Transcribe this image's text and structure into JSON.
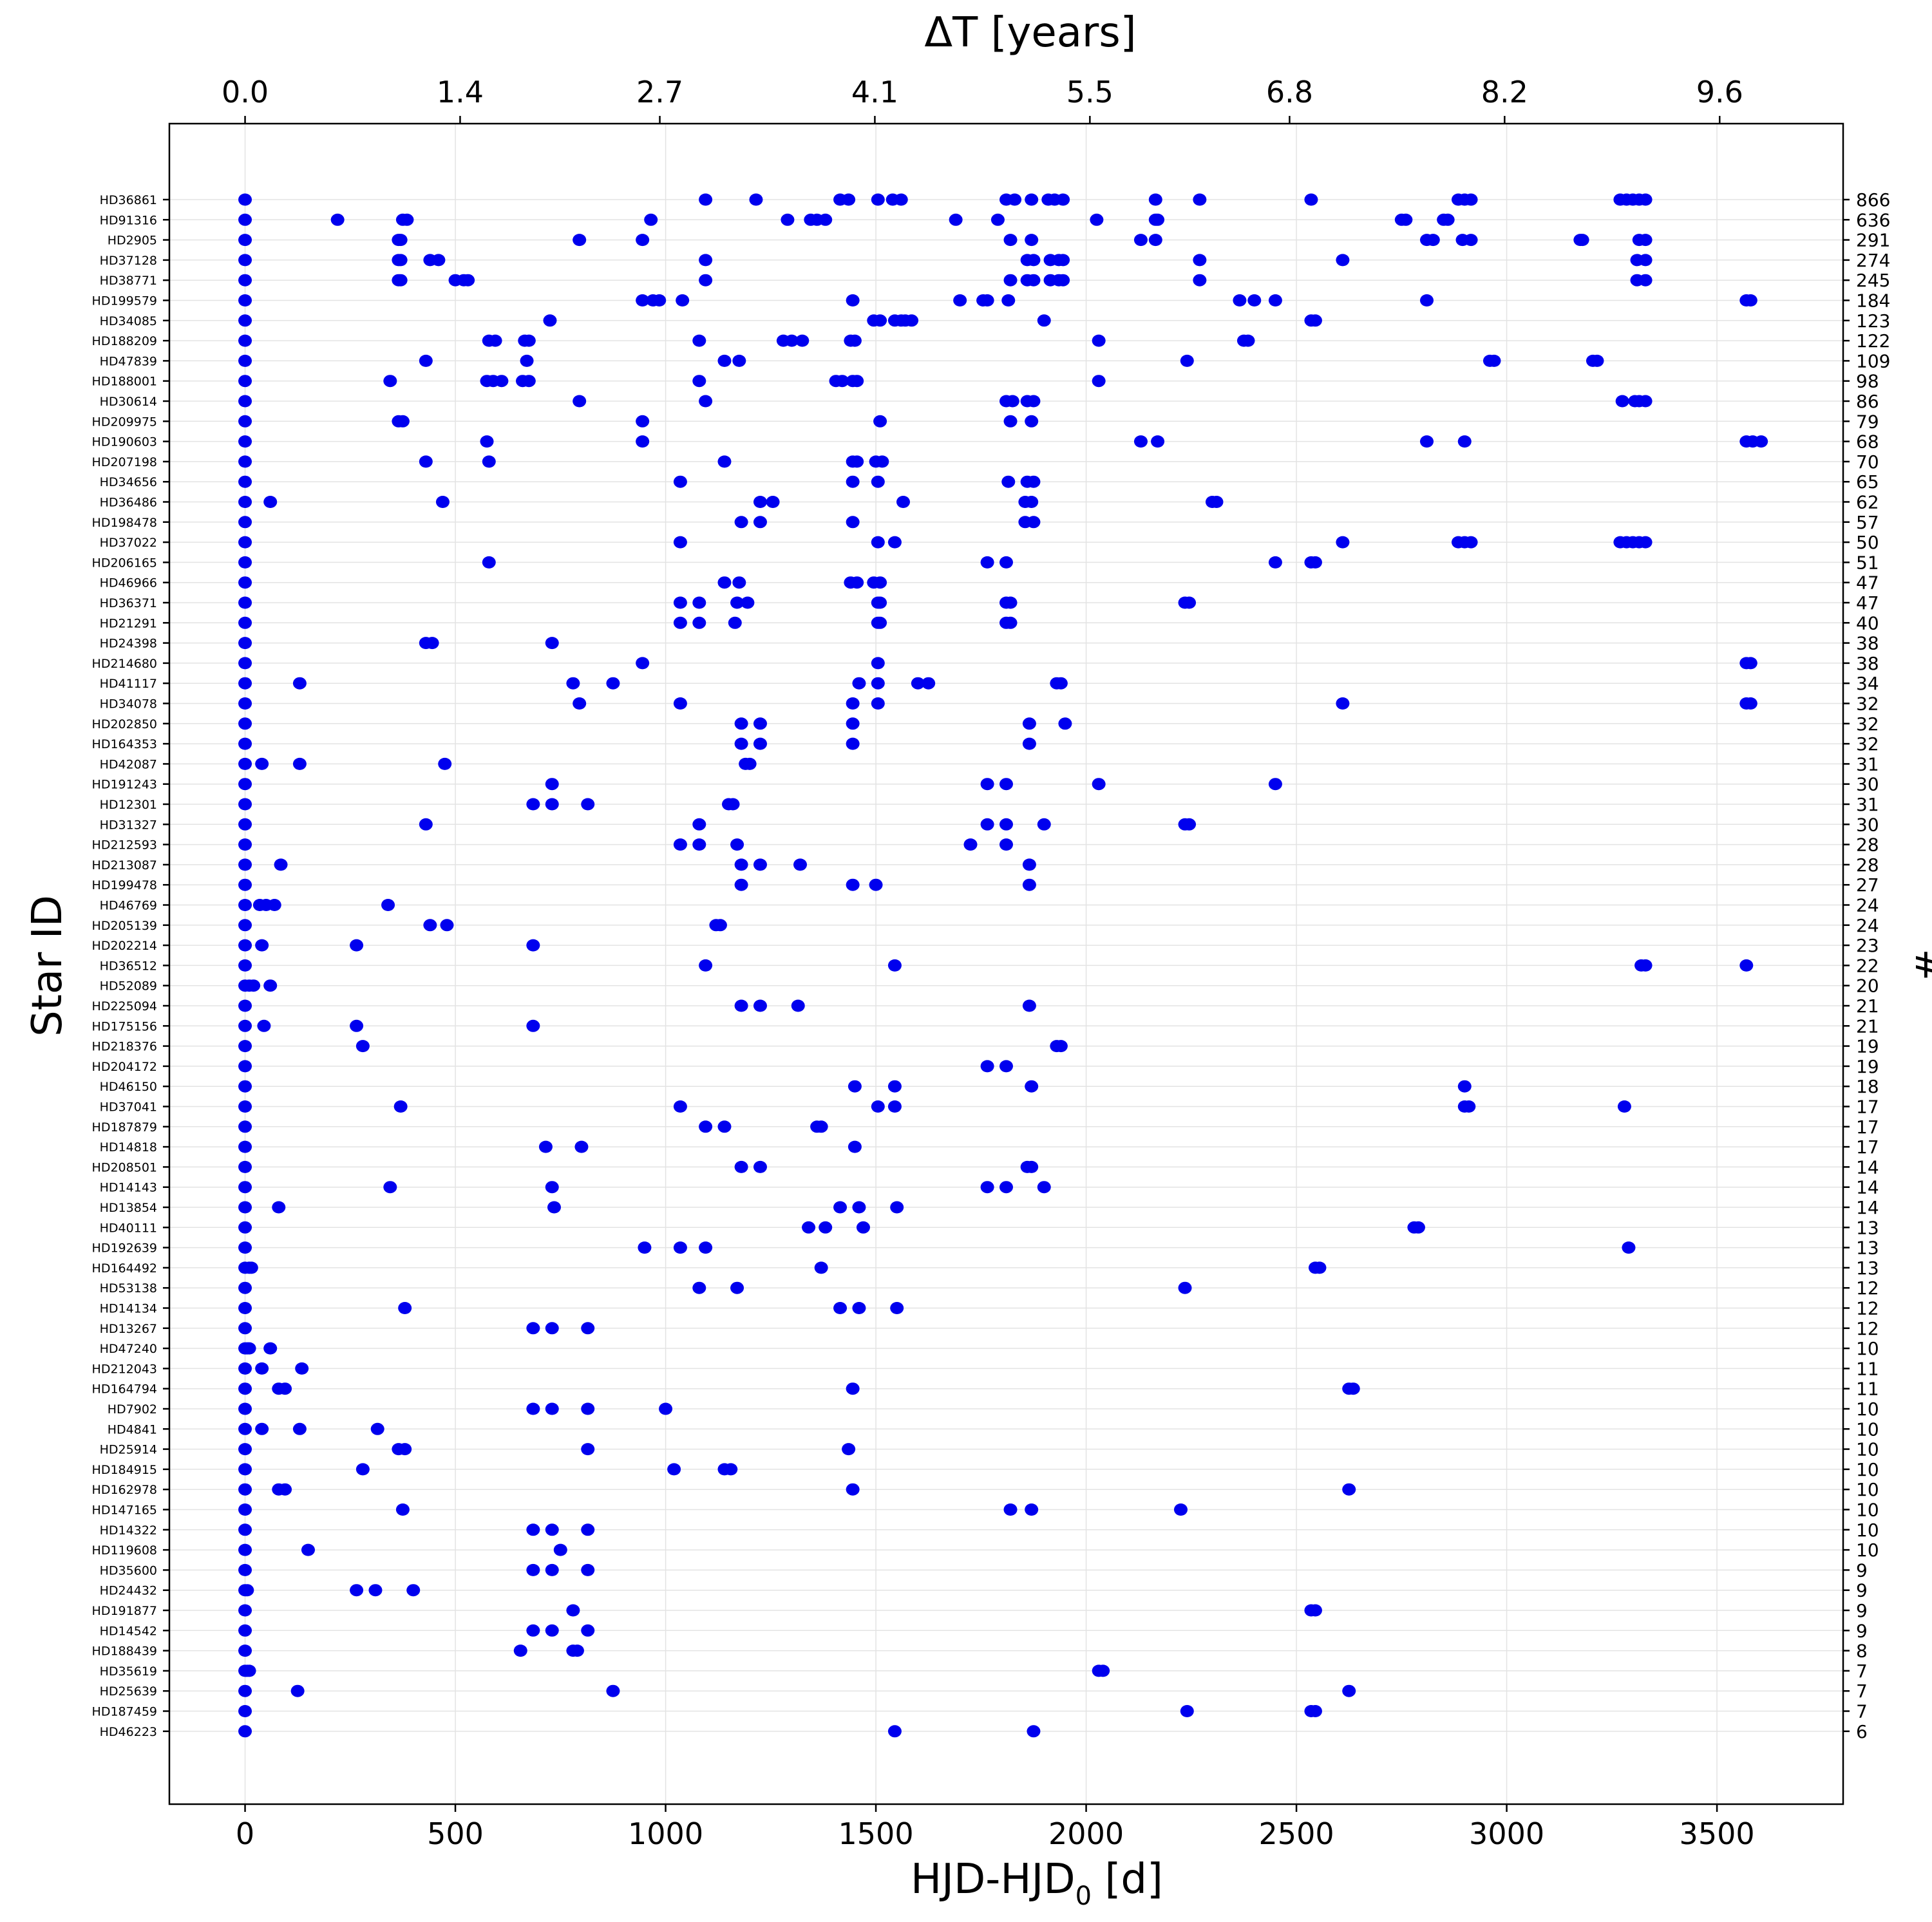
{
  "chart_data": {
    "type": "scatter",
    "xlabel": "HJD-HJD",
    "xlabel_sub": "0",
    "xlabel_unit": " [d]",
    "x2label": "ΔT [years]",
    "ylabel": "Star ID",
    "y2label": "#",
    "xlim": [
      -180,
      3800
    ],
    "x_ticks": [
      "0",
      "500",
      "1000",
      "1500",
      "2000",
      "2500",
      "3000",
      "3500"
    ],
    "x2_ticks": [
      "0.0",
      "1.4",
      "2.7",
      "4.1",
      "5.5",
      "6.8",
      "8.2",
      "9.6"
    ],
    "grid": true,
    "marker_color": "#0000ee",
    "stars": [
      {
        "id": "HD36861",
        "n": "866",
        "x": [
          0,
          1095,
          1215,
          1415,
          1435,
          1505,
          1540,
          1560,
          1810,
          1830,
          1870,
          1910,
          1925,
          1945,
          2165,
          2270,
          2535,
          2885,
          2900,
          2915,
          3270,
          3285,
          3300,
          3315,
          3330
        ]
      },
      {
        "id": "HD91316",
        "n": "636",
        "x": [
          0,
          220,
          375,
          385,
          965,
          1290,
          1345,
          1360,
          1380,
          1690,
          1790,
          2025,
          2165,
          2170,
          2750,
          2760,
          2850,
          2860
        ]
      },
      {
        "id": "HD2905",
        "n": "291",
        "x": [
          0,
          365,
          370,
          795,
          945,
          1820,
          1870,
          2130,
          2165,
          2810,
          2825,
          2895,
          2915,
          3175,
          3180,
          3315,
          3330
        ]
      },
      {
        "id": "HD37128",
        "n": "274",
        "x": [
          0,
          365,
          370,
          440,
          460,
          1095,
          1860,
          1875,
          1915,
          1935,
          1945,
          2270,
          2610,
          3310,
          3330
        ]
      },
      {
        "id": "HD38771",
        "n": "245",
        "x": [
          0,
          365,
          370,
          500,
          520,
          530,
          1095,
          1820,
          1860,
          1875,
          1915,
          1935,
          1945,
          2270,
          3310,
          3330
        ]
      },
      {
        "id": "HD199579",
        "n": "184",
        "x": [
          0,
          945,
          970,
          985,
          1040,
          1445,
          1700,
          1755,
          1765,
          1815,
          2365,
          2400,
          2450,
          2810,
          3570,
          3580
        ]
      },
      {
        "id": "HD34085",
        "n": "123",
        "x": [
          0,
          725,
          1495,
          1510,
          1545,
          1560,
          1570,
          1585,
          1900,
          2535,
          2545
        ]
      },
      {
        "id": "HD188209",
        "n": "122",
        "x": [
          0,
          580,
          595,
          665,
          675,
          1080,
          1280,
          1300,
          1325,
          1440,
          1450,
          2030,
          2375,
          2385
        ]
      },
      {
        "id": "HD47839",
        "n": "109",
        "x": [
          0,
          430,
          670,
          1140,
          1175,
          2240,
          2960,
          2970,
          3205,
          3215
        ]
      },
      {
        "id": "HD188001",
        "n": "98",
        "x": [
          0,
          345,
          575,
          590,
          610,
          660,
          675,
          1080,
          1405,
          1420,
          1445,
          1455,
          2030
        ]
      },
      {
        "id": "HD30614",
        "n": "86",
        "x": [
          0,
          795,
          1095,
          1810,
          1825,
          1860,
          1875,
          3275,
          3305,
          3315,
          3330
        ]
      },
      {
        "id": "HD209975",
        "n": "79",
        "x": [
          0,
          365,
          375,
          945,
          1510,
          1820,
          1870
        ]
      },
      {
        "id": "HD190603",
        "n": "68",
        "x": [
          0,
          575,
          945,
          2130,
          2170,
          2810,
          2900,
          3570,
          3585,
          3605
        ]
      },
      {
        "id": "HD207198",
        "n": "70",
        "x": [
          0,
          430,
          580,
          1140,
          1445,
          1455,
          1500,
          1515
        ]
      },
      {
        "id": "HD34656",
        "n": "65",
        "x": [
          0,
          1035,
          1445,
          1505,
          1815,
          1860,
          1875
        ]
      },
      {
        "id": "HD36486",
        "n": "62",
        "x": [
          0,
          60,
          470,
          1225,
          1255,
          1565,
          1855,
          1870,
          2300,
          2310
        ]
      },
      {
        "id": "HD198478",
        "n": "57",
        "x": [
          0,
          1180,
          1225,
          1445,
          1855,
          1875
        ]
      },
      {
        "id": "HD37022",
        "n": "50",
        "x": [
          0,
          1035,
          1505,
          1545,
          2610,
          2885,
          2900,
          2915,
          3270,
          3285,
          3300,
          3315,
          3330
        ]
      },
      {
        "id": "HD206165",
        "n": "51",
        "x": [
          0,
          580,
          1765,
          1810,
          2450,
          2535,
          2545
        ]
      },
      {
        "id": "HD46966",
        "n": "47",
        "x": [
          0,
          1140,
          1175,
          1440,
          1455,
          1495,
          1510
        ]
      },
      {
        "id": "HD36371",
        "n": "47",
        "x": [
          0,
          1035,
          1080,
          1170,
          1195,
          1505,
          1510,
          1810,
          1820,
          2235,
          2245
        ]
      },
      {
        "id": "HD21291",
        "n": "40",
        "x": [
          0,
          1035,
          1080,
          1165,
          1505,
          1510,
          1810,
          1820
        ]
      },
      {
        "id": "HD24398",
        "n": "38",
        "x": [
          0,
          430,
          445,
          730
        ]
      },
      {
        "id": "HD214680",
        "n": "38",
        "x": [
          0,
          945,
          1505,
          3570,
          3580
        ]
      },
      {
        "id": "HD41117",
        "n": "34",
        "x": [
          0,
          130,
          780,
          875,
          1460,
          1505,
          1600,
          1625,
          1930,
          1940
        ]
      },
      {
        "id": "HD34078",
        "n": "32",
        "x": [
          0,
          795,
          1035,
          1445,
          1505,
          2610,
          3570,
          3580
        ]
      },
      {
        "id": "HD202850",
        "n": "32",
        "x": [
          0,
          1180,
          1225,
          1445,
          1865,
          1950
        ]
      },
      {
        "id": "HD164353",
        "n": "32",
        "x": [
          0,
          1180,
          1225,
          1445,
          1865
        ]
      },
      {
        "id": "HD42087",
        "n": "31",
        "x": [
          0,
          40,
          130,
          475,
          1190,
          1200
        ]
      },
      {
        "id": "HD191243",
        "n": "30",
        "x": [
          0,
          730,
          1765,
          1810,
          2030,
          2450
        ]
      },
      {
        "id": "HD12301",
        "n": "31",
        "x": [
          0,
          685,
          730,
          815,
          1150,
          1160
        ]
      },
      {
        "id": "HD31327",
        "n": "30",
        "x": [
          0,
          430,
          1080,
          1765,
          1810,
          1900,
          2235,
          2245
        ]
      },
      {
        "id": "HD212593",
        "n": "28",
        "x": [
          0,
          1035,
          1080,
          1170,
          1725,
          1810
        ]
      },
      {
        "id": "HD213087",
        "n": "28",
        "x": [
          0,
          85,
          1180,
          1225,
          1320,
          1865
        ]
      },
      {
        "id": "HD199478",
        "n": "27",
        "x": [
          0,
          1180,
          1445,
          1500,
          1865
        ]
      },
      {
        "id": "HD46769",
        "n": "24",
        "x": [
          0,
          35,
          50,
          70,
          340
        ]
      },
      {
        "id": "HD205139",
        "n": "24",
        "x": [
          0,
          440,
          480,
          1120,
          1130
        ]
      },
      {
        "id": "HD202214",
        "n": "23",
        "x": [
          0,
          40,
          265,
          685
        ]
      },
      {
        "id": "HD36512",
        "n": "22",
        "x": [
          0,
          1095,
          1545,
          3320,
          3330,
          3570
        ]
      },
      {
        "id": "HD52089",
        "n": "20",
        "x": [
          0,
          10,
          20,
          60
        ]
      },
      {
        "id": "HD225094",
        "n": "21",
        "x": [
          0,
          1180,
          1225,
          1315,
          1865
        ]
      },
      {
        "id": "HD175156",
        "n": "21",
        "x": [
          0,
          45,
          265,
          685
        ]
      },
      {
        "id": "HD218376",
        "n": "19",
        "x": [
          0,
          280,
          1930,
          1940
        ]
      },
      {
        "id": "HD204172",
        "n": "19",
        "x": [
          0,
          1765,
          1810
        ]
      },
      {
        "id": "HD46150",
        "n": "18",
        "x": [
          0,
          1450,
          1545,
          1870,
          2900
        ]
      },
      {
        "id": "HD37041",
        "n": "17",
        "x": [
          0,
          370,
          1035,
          1505,
          1545,
          2900,
          2910,
          3280
        ]
      },
      {
        "id": "HD187879",
        "n": "17",
        "x": [
          0,
          1095,
          1140,
          1360,
          1370
        ]
      },
      {
        "id": "HD14818",
        "n": "17",
        "x": [
          0,
          715,
          800,
          1450
        ]
      },
      {
        "id": "HD208501",
        "n": "14",
        "x": [
          0,
          1180,
          1225,
          1860,
          1870
        ]
      },
      {
        "id": "HD14143",
        "n": "14",
        "x": [
          0,
          345,
          730,
          1765,
          1810,
          1900
        ]
      },
      {
        "id": "HD13854",
        "n": "14",
        "x": [
          0,
          80,
          735,
          1415,
          1460,
          1550
        ]
      },
      {
        "id": "HD40111",
        "n": "13",
        "x": [
          0,
          1340,
          1380,
          1470,
          2780,
          2790
        ]
      },
      {
        "id": "HD192639",
        "n": "13",
        "x": [
          0,
          950,
          1035,
          1095,
          3290
        ]
      },
      {
        "id": "HD164492",
        "n": "13",
        "x": [
          0,
          10,
          15,
          1370,
          2545,
          2555
        ]
      },
      {
        "id": "HD53138",
        "n": "12",
        "x": [
          0,
          1080,
          1170,
          2235
        ]
      },
      {
        "id": "HD14134",
        "n": "12",
        "x": [
          0,
          380,
          1415,
          1460,
          1550
        ]
      },
      {
        "id": "HD13267",
        "n": "12",
        "x": [
          0,
          685,
          730,
          815
        ]
      },
      {
        "id": "HD47240",
        "n": "10",
        "x": [
          0,
          5,
          10,
          60
        ]
      },
      {
        "id": "HD212043",
        "n": "11",
        "x": [
          0,
          40,
          135
        ]
      },
      {
        "id": "HD164794",
        "n": "11",
        "x": [
          0,
          80,
          95,
          1445,
          2625,
          2635
        ]
      },
      {
        "id": "HD7902",
        "n": "10",
        "x": [
          0,
          685,
          730,
          815,
          1000
        ]
      },
      {
        "id": "HD4841",
        "n": "10",
        "x": [
          0,
          40,
          130,
          315
        ]
      },
      {
        "id": "HD25914",
        "n": "10",
        "x": [
          0,
          365,
          380,
          815,
          1435
        ]
      },
      {
        "id": "HD184915",
        "n": "10",
        "x": [
          0,
          280,
          1020,
          1140,
          1155
        ]
      },
      {
        "id": "HD162978",
        "n": "10",
        "x": [
          0,
          80,
          95,
          1445,
          2625
        ]
      },
      {
        "id": "HD147165",
        "n": "10",
        "x": [
          0,
          375,
          1820,
          1870,
          2225
        ]
      },
      {
        "id": "HD14322",
        "n": "10",
        "x": [
          0,
          685,
          730,
          815
        ]
      },
      {
        "id": "HD119608",
        "n": "10",
        "x": [
          0,
          150,
          750
        ]
      },
      {
        "id": "HD35600",
        "n": "9",
        "x": [
          0,
          685,
          730,
          815
        ]
      },
      {
        "id": "HD24432",
        "n": "9",
        "x": [
          0,
          5,
          265,
          310,
          400
        ]
      },
      {
        "id": "HD191877",
        "n": "9",
        "x": [
          0,
          780,
          2535,
          2545
        ]
      },
      {
        "id": "HD14542",
        "n": "9",
        "x": [
          0,
          685,
          730,
          815
        ]
      },
      {
        "id": "HD188439",
        "n": "8",
        "x": [
          0,
          655,
          780,
          790
        ]
      },
      {
        "id": "HD35619",
        "n": "7",
        "x": [
          0,
          5,
          10,
          2030,
          2040
        ]
      },
      {
        "id": "HD25639",
        "n": "7",
        "x": [
          0,
          125,
          875,
          2625
        ]
      },
      {
        "id": "HD187459",
        "n": "7",
        "x": [
          0,
          2240,
          2535,
          2545
        ]
      },
      {
        "id": "HD46223",
        "n": "6",
        "x": [
          0,
          1545,
          1875
        ]
      }
    ]
  }
}
